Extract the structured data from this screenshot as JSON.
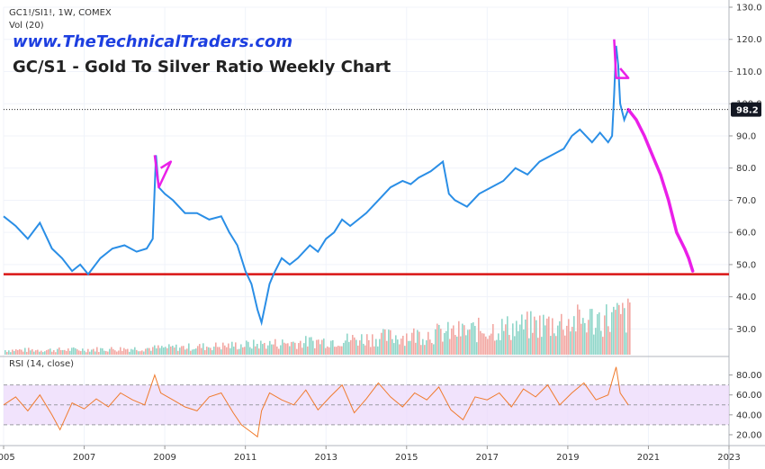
{
  "header": {
    "symbol_line": "GC1!/SI1!, 1W, COMEX",
    "vol_line": "Vol (20)",
    "site": "www.TheTechnicalTraders.com",
    "title": "GC/S1 - Gold To Silver Ratio Weekly Chart"
  },
  "rsi_panel": {
    "label": "RSI (14, close)"
  },
  "colors": {
    "price_line": "#2a8ee6",
    "projection": "#ea1fe8",
    "support_line": "#d91414",
    "rsi_line": "#f07b2e",
    "rsi_band": "#ecd9fb",
    "vol_up": "#8fd6c9",
    "vol_down": "#f2a8a3"
  },
  "chart_data": [
    {
      "type": "line",
      "x": [
        2005.0,
        2005.3,
        2005.6,
        2005.9,
        2006.2,
        2006.45,
        2006.7,
        2006.9,
        2007.1,
        2007.4,
        2007.7,
        2008.0,
        2008.3,
        2008.55,
        2008.7,
        2008.78,
        2008.85,
        2009.0,
        2009.2,
        2009.5,
        2009.8,
        2010.1,
        2010.4,
        2010.6,
        2010.8,
        2011.0,
        2011.15,
        2011.3,
        2011.4,
        2011.5,
        2011.6,
        2011.7,
        2011.9,
        2012.1,
        2012.3,
        2012.6,
        2012.8,
        2013.0,
        2013.2,
        2013.4,
        2013.6,
        2013.8,
        2014.0,
        2014.3,
        2014.6,
        2014.9,
        2015.1,
        2015.3,
        2015.6,
        2015.9,
        2016.05,
        2016.2,
        2016.5,
        2016.8,
        2017.1,
        2017.4,
        2017.7,
        2018.0,
        2018.3,
        2018.6,
        2018.9,
        2019.1,
        2019.3,
        2019.6,
        2019.8,
        2020.0,
        2020.1,
        2020.15,
        2020.2,
        2020.25,
        2020.3,
        2020.4,
        2020.5
      ],
      "y": [
        65,
        62,
        58,
        63,
        55,
        52,
        48,
        50,
        47,
        52,
        55,
        56,
        54,
        55,
        58,
        84,
        74,
        72,
        70,
        66,
        66,
        64,
        65,
        60,
        56,
        48,
        44,
        36,
        32,
        38,
        44,
        47,
        52,
        50,
        52,
        56,
        54,
        58,
        60,
        64,
        62,
        64,
        66,
        70,
        74,
        76,
        75,
        77,
        79,
        82,
        72,
        70,
        68,
        72,
        74,
        76,
        80,
        78,
        82,
        84,
        86,
        90,
        92,
        88,
        91,
        88,
        90,
        103,
        118,
        112,
        100,
        95,
        98.2
      ],
      "projection": {
        "x": [
          2020.5,
          2020.7,
          2020.9,
          2021.1,
          2021.3,
          2021.5,
          2021.7,
          2021.9,
          2022.0,
          2022.1
        ],
        "y": [
          98.2,
          95,
          90,
          84,
          78,
          70,
          60,
          55,
          52,
          48
        ]
      },
      "triangles": [
        {
          "x": [
            2008.75,
            2008.85,
            2009.15,
            2008.9
          ],
          "y": [
            84,
            74,
            82,
            80
          ]
        },
        {
          "x": [
            2020.15,
            2020.2,
            2020.5,
            2020.3
          ],
          "y": [
            120,
            108,
            108,
            111
          ]
        }
      ],
      "support_level": 47,
      "current_price_label": "98.2",
      "current_price": 98.2,
      "ylim": [
        22,
        130
      ],
      "y_ticks": [
        "130.0",
        "120.0",
        "110.0",
        "100.0",
        "90.0",
        "80.0",
        "70.0",
        "60.0",
        "50.0",
        "40.0",
        "30.0"
      ],
      "x_ticks": [
        "2005",
        "2007",
        "2009",
        "2011",
        "2013",
        "2015",
        "2017",
        "2019",
        "2021",
        "2023"
      ],
      "xlim": [
        2005.0,
        2023.0
      ],
      "grid": true
    },
    {
      "type": "line",
      "title": "RSI (14, close)",
      "x": [
        2005.0,
        2005.3,
        2005.6,
        2005.9,
        2006.2,
        2006.4,
        2006.7,
        2007.0,
        2007.3,
        2007.6,
        2007.9,
        2008.2,
        2008.5,
        2008.75,
        2008.9,
        2009.2,
        2009.5,
        2009.8,
        2010.1,
        2010.4,
        2010.7,
        2010.9,
        2011.1,
        2011.3,
        2011.4,
        2011.6,
        2011.9,
        2012.2,
        2012.5,
        2012.8,
        2013.1,
        2013.4,
        2013.7,
        2014.0,
        2014.3,
        2014.6,
        2014.9,
        2015.2,
        2015.5,
        2015.8,
        2016.1,
        2016.4,
        2016.7,
        2017.0,
        2017.3,
        2017.6,
        2017.9,
        2018.2,
        2018.5,
        2018.8,
        2019.1,
        2019.4,
        2019.7,
        2020.0,
        2020.2,
        2020.3,
        2020.5
      ],
      "y": [
        50,
        58,
        44,
        60,
        40,
        25,
        52,
        46,
        56,
        48,
        62,
        55,
        50,
        80,
        62,
        55,
        48,
        44,
        58,
        62,
        42,
        30,
        24,
        18,
        44,
        62,
        55,
        50,
        65,
        45,
        58,
        70,
        42,
        56,
        72,
        58,
        48,
        62,
        55,
        68,
        45,
        35,
        58,
        55,
        62,
        48,
        66,
        58,
        70,
        50,
        62,
        72,
        55,
        60,
        88,
        62,
        50
      ],
      "bands": [
        30,
        70
      ],
      "ylim": [
        10,
        95
      ],
      "y_ticks": [
        "80.00",
        "60.00",
        "40.00",
        "20.00"
      ]
    }
  ]
}
